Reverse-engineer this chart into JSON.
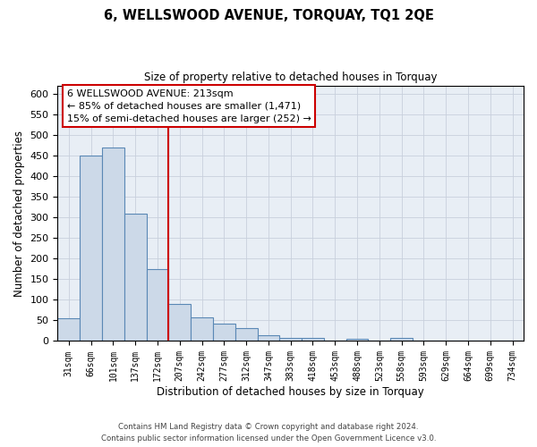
{
  "title": "6, WELLSWOOD AVENUE, TORQUAY, TQ1 2QE",
  "subtitle": "Size of property relative to detached houses in Torquay",
  "xlabel": "Distribution of detached houses by size in Torquay",
  "ylabel": "Number of detached properties",
  "bin_labels": [
    "31sqm",
    "66sqm",
    "101sqm",
    "137sqm",
    "172sqm",
    "207sqm",
    "242sqm",
    "277sqm",
    "312sqm",
    "347sqm",
    "383sqm",
    "418sqm",
    "453sqm",
    "488sqm",
    "523sqm",
    "558sqm",
    "593sqm",
    "629sqm",
    "664sqm",
    "699sqm",
    "734sqm"
  ],
  "bar_heights": [
    55,
    450,
    470,
    310,
    175,
    90,
    58,
    42,
    32,
    15,
    7,
    8,
    2,
    6,
    2,
    8,
    0,
    2,
    0,
    0,
    2
  ],
  "bar_color": "#ccd9e8",
  "bar_edge_color": "#5a88b5",
  "vline_x_index": 5,
  "vline_color": "#cc0000",
  "annotation_line1": "6 WELLSWOOD AVENUE: 213sqm",
  "annotation_line2": "← 85% of detached houses are smaller (1,471)",
  "annotation_line3": "15% of semi-detached houses are larger (252) →",
  "annotation_box_color": "#ffffff",
  "annotation_box_edge_color": "#cc0000",
  "ylim": [
    0,
    620
  ],
  "yticks": [
    0,
    50,
    100,
    150,
    200,
    250,
    300,
    350,
    400,
    450,
    500,
    550,
    600
  ],
  "footer_line1": "Contains HM Land Registry data © Crown copyright and database right 2024.",
  "footer_line2": "Contains public sector information licensed under the Open Government Licence v3.0.",
  "background_color": "#ffffff",
  "plot_bg_color": "#e8eef5",
  "grid_color": "#c8d0dc"
}
